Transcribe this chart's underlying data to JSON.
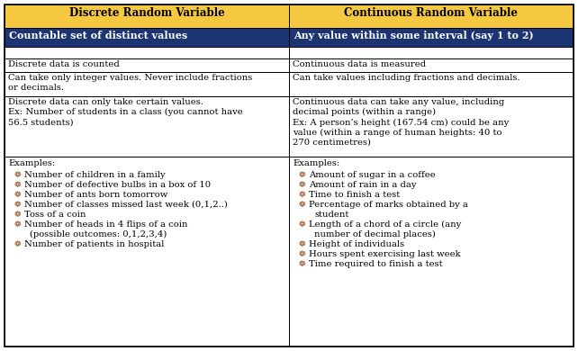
{
  "title_row": [
    "Discrete Random Variable",
    "Continuous Random Variable"
  ],
  "subtitle_row": [
    "Countable set of distinct values",
    "Any value within some interval (say 1 to 2)"
  ],
  "row1": [
    "Discrete data is counted",
    "Continuous data is measured"
  ],
  "row2": [
    "Can take only integer values. Never include fractions\nor decimals.",
    "Can take values including fractions and decimals."
  ],
  "row3": [
    "Discrete data can only take certain values.\nEx: Number of students in a class (you cannot have\n56.5 students)",
    "Continuous data can take any value, including\ndecimal points (within a range)\nEx: A person’s height (167.54 cm) could be any\nvalue (within a range of human heights: 40 to\n270 centimetres)"
  ],
  "row4_left_header": "Examples:",
  "row4_left_items": [
    "Number of children in a family",
    "Number of defective bulbs in a box of 10",
    "Number of ants born tomorrow",
    "Number of classes missed last week (0,1,2..)",
    "Toss of a coin",
    "Number of heads in 4 flips of a coin\n    (possible outcomes: 0,1,2,3,4)",
    "Number of patients in hospital"
  ],
  "row4_right_items": [
    "Amount of sugar in a coffee",
    "Amount of rain in a day",
    "Time to finish a test",
    "Percentage of marks obtained by a\n    student",
    "Length of a chord of a circle (any\n    number of decimal places)",
    "Height of individuals",
    "Hours spent exercising last week",
    "Time required to finish a test"
  ],
  "header_bg": "#F5C842",
  "header_text_color": "#000000",
  "subheader_bg": "#1C3472",
  "subheader_text_color": "#FFFFFF",
  "body_bg": "#FFFFFF",
  "body_text_color": "#000000",
  "border_color": "#000000",
  "bullet_color": "#8B4010",
  "fig_width": 6.42,
  "fig_height": 3.9,
  "dpi": 100
}
